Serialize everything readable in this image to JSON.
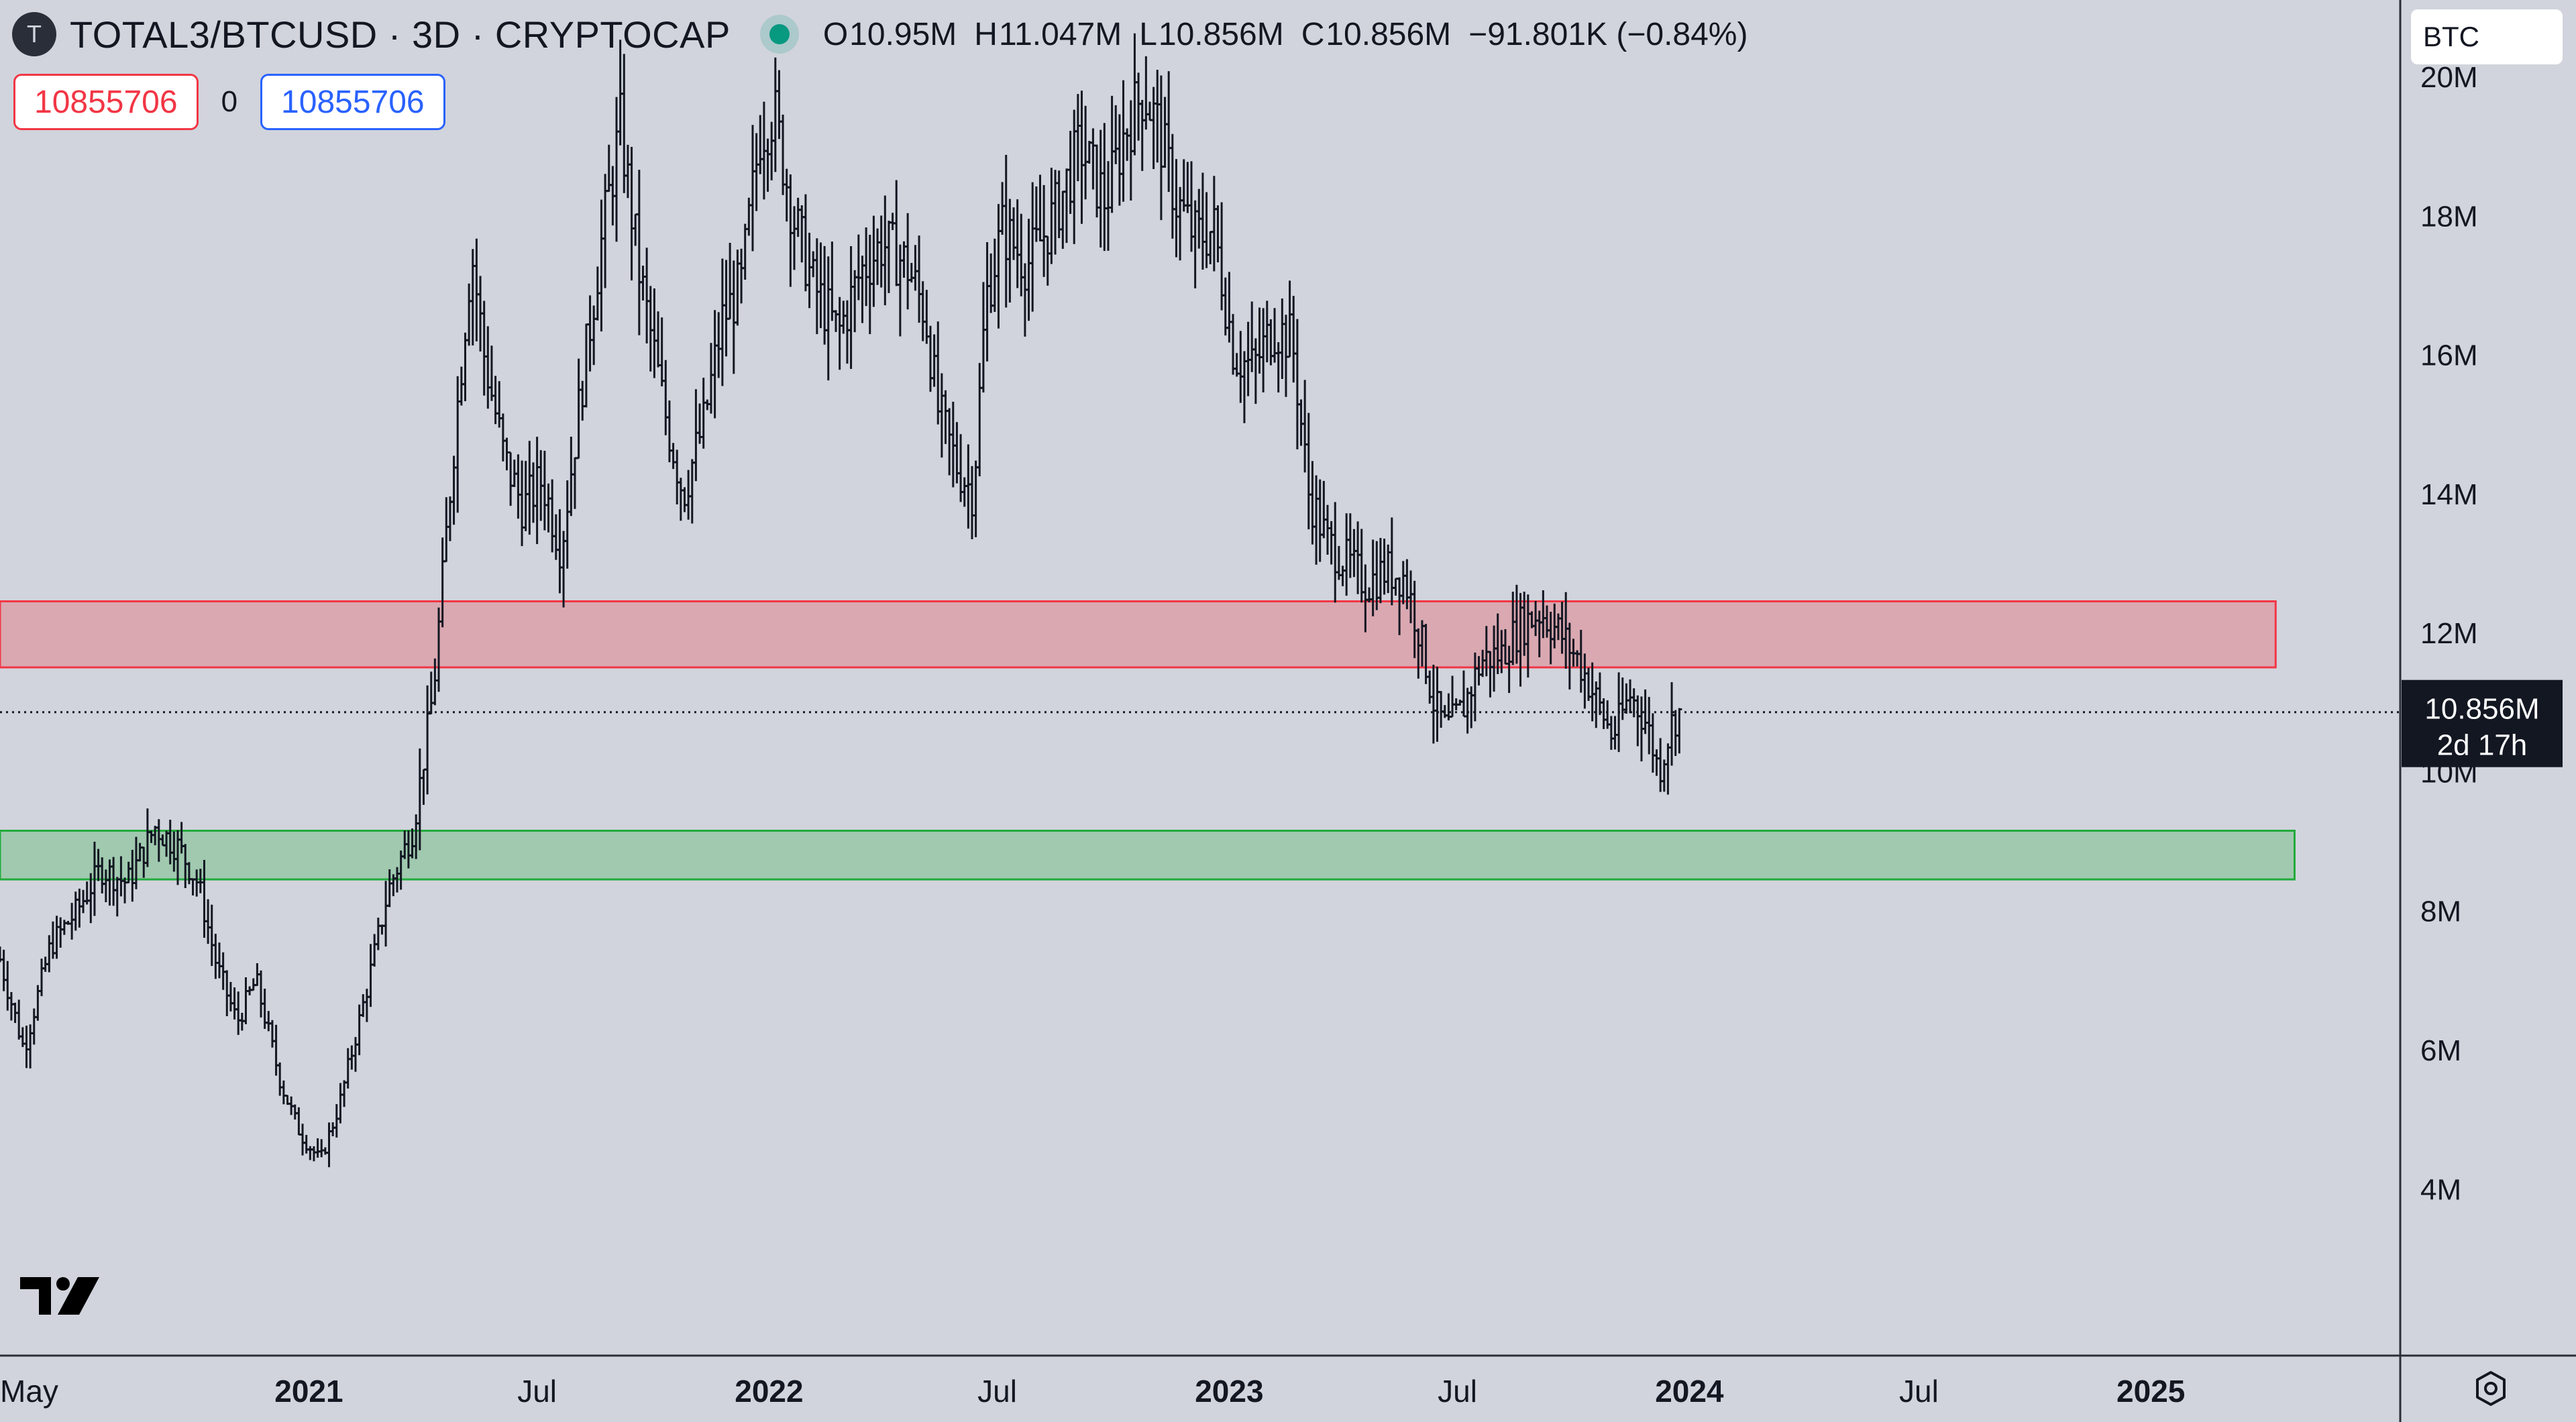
{
  "header": {
    "logo_letter": "T",
    "symbol": "TOTAL3/BTCUSD · 3D · CRYPTOCAP",
    "open_label": "O",
    "open": "10.95M",
    "high_label": "H",
    "high": "11.047M",
    "low_label": "L",
    "low": "10.856M",
    "close_label": "C",
    "close": "10.856M",
    "change": "−91.801K (−0.84%)"
  },
  "order": {
    "sell_qty": "10855706",
    "spread": "0",
    "buy_qty": "10855706"
  },
  "currency": "BTC",
  "last_price": {
    "value": "10.856M",
    "countdown": "2d 17h"
  },
  "colors": {
    "background": "#d1d4dc",
    "candles": "#131722",
    "resistance_zone": "#f23645",
    "support_zone": "#22ab3c",
    "sell_qty": "#f23645",
    "buy_qty": "#2962ff"
  },
  "icons": {
    "settings": "gear-icon",
    "logo": "tradingview-logo"
  },
  "chart_data": {
    "type": "ohlc-bar",
    "yaxis_ticks": [
      "20M",
      "18M",
      "16M",
      "14M",
      "12M",
      "10M",
      "8M",
      "6M",
      "4M"
    ],
    "yaxis_tick_values": [
      20,
      18,
      16,
      14,
      12,
      10,
      8,
      6,
      4
    ],
    "xaxis_ticks": [
      {
        "label": "May",
        "date": "2020-05-01",
        "bold": false
      },
      {
        "label": "2021",
        "date": "2021-01-01",
        "bold": true
      },
      {
        "label": "Jul",
        "date": "2021-07-01",
        "bold": false
      },
      {
        "label": "2022",
        "date": "2022-01-01",
        "bold": true
      },
      {
        "label": "Jul",
        "date": "2022-07-01",
        "bold": false
      },
      {
        "label": "2023",
        "date": "2023-01-01",
        "bold": true
      },
      {
        "label": "Jul",
        "date": "2023-07-01",
        "bold": false
      },
      {
        "label": "2024",
        "date": "2024-01-01",
        "bold": true
      },
      {
        "label": "Jul",
        "date": "2024-07-01",
        "bold": false
      },
      {
        "label": "2025",
        "date": "2025-01-01",
        "bold": true
      }
    ],
    "visible_range": {
      "start": "2020-05-01",
      "end": "2025-06-01"
    },
    "ylim_millions": [
      1.6,
      21.1
    ],
    "last_price_millions": 10.856,
    "zones": [
      {
        "name": "resistance",
        "top": 12.45,
        "bottom": 11.5,
        "start": "2020-05-01",
        "end": "2025-04-10",
        "color": "#f23645"
      },
      {
        "name": "support",
        "top": 9.15,
        "bottom": 8.45,
        "start": "2020-05-01",
        "end": "2025-04-25",
        "color": "#22ab3c"
      }
    ],
    "price_path_millions": [
      [
        "2020-05-01",
        7.3
      ],
      [
        "2020-05-20",
        6.0
      ],
      [
        "2020-06-10",
        7.5
      ],
      [
        "2020-07-01",
        8.0
      ],
      [
        "2020-07-20",
        8.6
      ],
      [
        "2020-08-10",
        8.4
      ],
      [
        "2020-09-01",
        9.2
      ],
      [
        "2020-09-20",
        8.9
      ],
      [
        "2020-10-05",
        8.4
      ],
      [
        "2020-10-20",
        7.2
      ],
      [
        "2020-11-05",
        6.4
      ],
      [
        "2020-11-20",
        7.0
      ],
      [
        "2020-12-10",
        5.5
      ],
      [
        "2020-12-25",
        4.8
      ],
      [
        "2021-01-10",
        4.4
      ],
      [
        "2021-01-25",
        5.2
      ],
      [
        "2021-02-15",
        6.8
      ],
      [
        "2021-03-05",
        8.3
      ],
      [
        "2021-03-25",
        9.2
      ],
      [
        "2021-04-10",
        11.2
      ],
      [
        "2021-04-25",
        14.5
      ],
      [
        "2021-05-10",
        17.5
      ],
      [
        "2021-05-20",
        16.0
      ],
      [
        "2021-06-05",
        14.5
      ],
      [
        "2021-06-20",
        13.8
      ],
      [
        "2021-07-05",
        14.2
      ],
      [
        "2021-07-20",
        13.2
      ],
      [
        "2021-08-05",
        15.5
      ],
      [
        "2021-08-20",
        17.5
      ],
      [
        "2021-09-05",
        19.3
      ],
      [
        "2021-09-20",
        17.2
      ],
      [
        "2021-10-10",
        15.2
      ],
      [
        "2021-10-25",
        14.0
      ],
      [
        "2021-11-10",
        15.0
      ],
      [
        "2021-11-25",
        16.5
      ],
      [
        "2021-12-10",
        17.0
      ],
      [
        "2021-12-25",
        19.2
      ],
      [
        "2022-01-05",
        19.5
      ],
      [
        "2022-01-20",
        18.0
      ],
      [
        "2022-02-05",
        17.0
      ],
      [
        "2022-02-25",
        16.3
      ],
      [
        "2022-03-15",
        17.2
      ],
      [
        "2022-04-01",
        17.6
      ],
      [
        "2022-04-20",
        17.3
      ],
      [
        "2022-05-05",
        16.6
      ],
      [
        "2022-05-15",
        15.2
      ],
      [
        "2022-05-30",
        14.4
      ],
      [
        "2022-06-12",
        14.0
      ],
      [
        "2022-06-22",
        16.8
      ],
      [
        "2022-07-05",
        17.8
      ],
      [
        "2022-07-25",
        17.3
      ],
      [
        "2022-08-15",
        18.0
      ],
      [
        "2022-09-05",
        19.0
      ],
      [
        "2022-09-25",
        18.2
      ],
      [
        "2022-10-10",
        19.2
      ],
      [
        "2022-10-25",
        19.8
      ],
      [
        "2022-11-05",
        19.3
      ],
      [
        "2022-11-20",
        18.2
      ],
      [
        "2022-12-05",
        17.7
      ],
      [
        "2022-12-20",
        17.8
      ],
      [
        "2023-01-05",
        16.0
      ],
      [
        "2023-01-20",
        15.8
      ],
      [
        "2023-02-05",
        16.4
      ],
      [
        "2023-02-20",
        16.2
      ],
      [
        "2023-03-05",
        14.0
      ],
      [
        "2023-03-20",
        13.3
      ],
      [
        "2023-04-05",
        13.0
      ],
      [
        "2023-04-20",
        12.7
      ],
      [
        "2023-05-05",
        12.9
      ],
      [
        "2023-05-20",
        12.8
      ],
      [
        "2023-06-01",
        12.0
      ],
      [
        "2023-06-12",
        11.0
      ],
      [
        "2023-06-22",
        10.6
      ],
      [
        "2023-07-05",
        10.9
      ],
      [
        "2023-07-20",
        11.6
      ],
      [
        "2023-08-05",
        11.7
      ],
      [
        "2023-08-20",
        12.1
      ],
      [
        "2023-09-05",
        12.3
      ],
      [
        "2023-09-20",
        12.0
      ],
      [
        "2023-10-05",
        11.6
      ],
      [
        "2023-10-20",
        11.0
      ],
      [
        "2023-11-01",
        10.5
      ],
      [
        "2023-11-15",
        11.1
      ],
      [
        "2023-11-28",
        10.7
      ],
      [
        "2023-12-08",
        10.0
      ],
      [
        "2023-12-18",
        10.7
      ],
      [
        "2023-12-26",
        10.9
      ]
    ]
  }
}
